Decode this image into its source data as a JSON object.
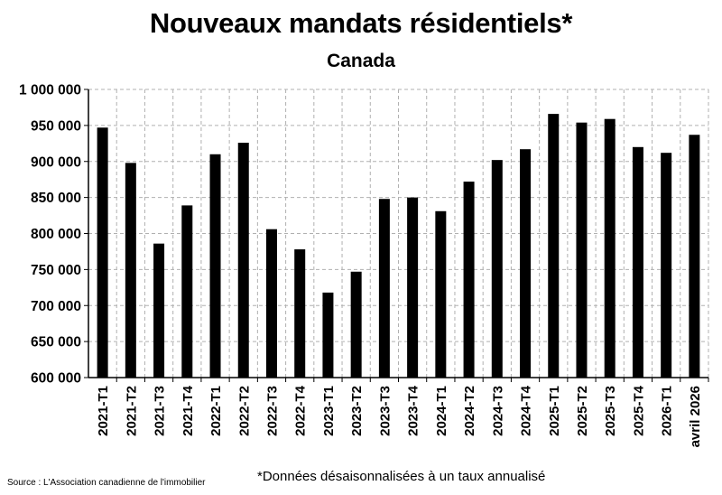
{
  "title": "Nouveaux mandats résidentiels*",
  "subtitle": "Canada",
  "footnote": "*Données désaisonnalisées à un taux annualisé",
  "source": "Source : L'Association canadienne de l'immobilier",
  "chart_data": {
    "type": "bar",
    "title": "Nouveaux mandats résidentiels*",
    "subtitle": "Canada",
    "categories": [
      "2021-T1",
      "2021-T2",
      "2021-T3",
      "2021-T4",
      "2022-T1",
      "2022-T2",
      "2022-T3",
      "2022-T4",
      "2023-T1",
      "2023-T2",
      "2023-T3",
      "2023-T4",
      "2024-T1",
      "2024-T2",
      "2024-T3",
      "2024-T4",
      "2025-T1",
      "2025-T2",
      "2025-T3",
      "2025-T4",
      "2026-T1",
      "avril 2026"
    ],
    "values": [
      947000,
      898000,
      786000,
      839000,
      910000,
      926000,
      806000,
      778000,
      718000,
      747000,
      848000,
      850000,
      831000,
      872000,
      902000,
      917000,
      966000,
      954000,
      959000,
      920000,
      912000,
      937000
    ],
    "ylim": [
      600000,
      1000000
    ],
    "yticks": [
      600000,
      650000,
      700000,
      750000,
      800000,
      850000,
      900000,
      950000,
      1000000
    ],
    "ytick_labels": [
      "600 000",
      "650 000",
      "700 000",
      "750 000",
      "800 000",
      "850 000",
      "900 000",
      "950 000",
      "1 000 000"
    ],
    "grid": true,
    "bar_color": "#000000",
    "grid_color": "#b0b0b0"
  }
}
